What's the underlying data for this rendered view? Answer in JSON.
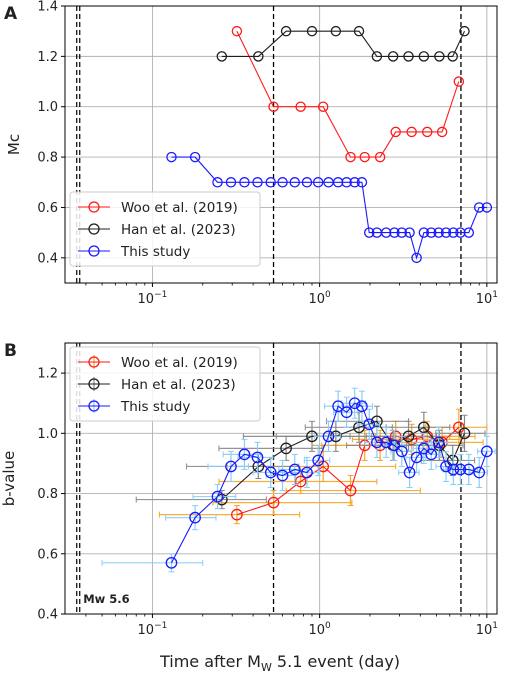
{
  "panels": [
    {
      "letter": "A"
    },
    {
      "letter": "B"
    }
  ],
  "x_ticks": [
    {
      "v": 0.1,
      "base": "10",
      "exp": "−1"
    },
    {
      "v": 1,
      "base": "10",
      "exp": "0"
    },
    {
      "v": 10,
      "base": "10",
      "exp": "1"
    }
  ],
  "x_label": {
    "pre": "Time after M",
    "sub": "W",
    "post": " 5.1 event (day)"
  },
  "colors": {
    "woo": "#ff1a1a",
    "han": "#1f1f1f",
    "this": "#1a1aff",
    "woo_err": "#f5a623",
    "this_err": "#87cefa",
    "grid": "#b0b0b0"
  },
  "chart_data": [
    {
      "type": "line",
      "panel": "A",
      "ylabel": "Mc",
      "xlabel": "",
      "xscale": "log",
      "xlim": [
        0.03,
        11.5
      ],
      "ylim": [
        0.3,
        1.4
      ],
      "y_ticks": [
        "0.4",
        "0.6",
        "0.8",
        "1.0",
        "1.2",
        "1.4"
      ],
      "legend": "lower-left",
      "grid": true,
      "vlines": [
        0.036,
        0.53,
        7.0
      ],
      "series": [
        {
          "name": "Woo et al. (2019)",
          "key": "woo",
          "x": [
            0.32,
            0.53,
            0.77,
            1.05,
            1.53,
            1.86,
            2.3,
            2.85,
            3.55,
            4.4,
            5.4,
            6.8
          ],
          "y": [
            1.3,
            1.0,
            1.0,
            1.0,
            0.8,
            0.8,
            0.8,
            0.9,
            0.9,
            0.9,
            0.9,
            1.1
          ]
        },
        {
          "name": "Han et al. (2023)",
          "key": "han",
          "x": [
            0.26,
            0.43,
            0.63,
            0.9,
            1.25,
            1.72,
            2.2,
            2.75,
            3.4,
            4.2,
            5.2,
            6.25,
            7.35
          ],
          "y": [
            1.2,
            1.2,
            1.3,
            1.3,
            1.3,
            1.3,
            1.2,
            1.2,
            1.2,
            1.2,
            1.2,
            1.2,
            1.3
          ]
        },
        {
          "name": "This study",
          "key": "this",
          "x": [
            0.13,
            0.18,
            0.245,
            0.295,
            0.355,
            0.425,
            0.51,
            0.6,
            0.71,
            0.84,
            0.98,
            1.13,
            1.29,
            1.45,
            1.62,
            1.79,
            1.98,
            2.2,
            2.5,
            2.8,
            3.1,
            3.45,
            3.8,
            4.2,
            4.65,
            5.15,
            5.7,
            6.3,
            6.95,
            7.8,
            9.0,
            10.0
          ],
          "y": [
            0.8,
            0.8,
            0.7,
            0.7,
            0.7,
            0.7,
            0.7,
            0.7,
            0.7,
            0.7,
            0.7,
            0.7,
            0.7,
            0.7,
            0.7,
            0.7,
            0.5,
            0.5,
            0.5,
            0.5,
            0.5,
            0.5,
            0.4,
            0.5,
            0.5,
            0.5,
            0.5,
            0.5,
            0.5,
            0.5,
            0.6,
            0.6
          ]
        }
      ]
    },
    {
      "type": "line",
      "panel": "B",
      "ylabel": "b-value",
      "xlabel": "Time after MW 5.1 event (day)",
      "xscale": "log",
      "xlim": [
        0.03,
        11.5
      ],
      "ylim": [
        0.4,
        1.3
      ],
      "y_ticks": [
        "0.4",
        "0.6",
        "0.8",
        "1.0",
        "1.2"
      ],
      "legend": "top-left",
      "grid": true,
      "vlines": [
        0.036,
        0.53,
        7.0
      ],
      "annotation": "Mw 5.6",
      "series": [
        {
          "name": "Woo et al. (2019)",
          "key": "woo",
          "x": [
            0.32,
            0.53,
            0.77,
            1.05,
            1.53,
            1.86,
            2.3,
            2.85,
            3.55,
            4.4,
            5.4,
            6.8
          ],
          "y": [
            0.73,
            0.77,
            0.84,
            0.89,
            0.81,
            0.96,
            0.96,
            0.99,
            0.98,
            0.99,
            0.97,
            1.02
          ],
          "xerr_lo": [
            0.21,
            0.3,
            0.52,
            0.77,
            0.9,
            0.96,
            1.27,
            1.65,
            1.98,
            2.25,
            2.7,
            2.5
          ],
          "xerr_hi": [
            0.44,
            1.03,
            1.43,
            1.8,
            2.47,
            3.24,
            2.7,
            3.15,
            3.45,
            4.1,
            4.1,
            3.2
          ],
          "yerr": [
            0.03,
            0.04,
            0.04,
            0.05,
            0.05,
            0.05,
            0.05,
            0.05,
            0.05,
            0.05,
            0.05,
            0.06
          ]
        },
        {
          "name": "Han et al. (2023)",
          "key": "han",
          "x": [
            0.26,
            0.43,
            0.63,
            0.9,
            1.25,
            1.72,
            2.2,
            2.75,
            3.4,
            4.2,
            5.2,
            6.25,
            7.35
          ],
          "y": [
            0.78,
            0.89,
            0.95,
            0.99,
            0.99,
            1.02,
            1.04,
            0.96,
            0.99,
            1.02,
            0.96,
            0.91,
            1.0
          ],
          "xerr_lo": [
            0.18,
            0.27,
            0.38,
            0.55,
            0.7,
            0.9,
            1.1,
            1.3,
            1.5,
            1.7,
            1.9,
            2.2,
            2.4
          ],
          "xerr_hi": [
            0.22,
            0.32,
            0.42,
            0.62,
            0.8,
            1.0,
            1.2,
            1.4,
            1.6,
            1.8,
            2.0,
            2.2,
            2.4
          ],
          "yerr": [
            0.03,
            0.04,
            0.04,
            0.05,
            0.05,
            0.05,
            0.05,
            0.05,
            0.05,
            0.05,
            0.05,
            0.05,
            0.06
          ]
        },
        {
          "name": "This study",
          "key": "this",
          "x": [
            0.13,
            0.18,
            0.245,
            0.295,
            0.355,
            0.425,
            0.51,
            0.6,
            0.71,
            0.84,
            0.98,
            1.13,
            1.29,
            1.45,
            1.62,
            1.79,
            1.98,
            2.2,
            2.5,
            2.8,
            3.1,
            3.45,
            3.8,
            4.2,
            4.65,
            5.15,
            5.7,
            6.3,
            6.95,
            7.8,
            9.0,
            10.0
          ],
          "y": [
            0.57,
            0.72,
            0.79,
            0.89,
            0.93,
            0.92,
            0.87,
            0.86,
            0.88,
            0.87,
            0.91,
            0.99,
            1.09,
            1.07,
            1.1,
            1.09,
            1.03,
            0.97,
            0.97,
            0.96,
            0.94,
            0.87,
            0.92,
            0.95,
            0.93,
            0.97,
            0.89,
            0.88,
            0.88,
            0.88,
            0.87,
            0.94
          ],
          "xerr_lo": [
            0.08,
            0.06,
            0.07,
            0.08,
            0.09,
            0.1,
            0.11,
            0.12,
            0.14,
            0.16,
            0.17,
            0.2,
            0.22,
            0.24,
            0.26,
            0.28,
            0.3,
            0.33,
            0.36,
            0.4,
            0.43,
            0.48,
            0.52,
            0.57,
            0.62,
            0.68,
            0.74,
            0.8,
            0.9,
            1.0,
            1.1,
            1.2
          ],
          "xerr_hi": [
            0.07,
            0.06,
            0.07,
            0.08,
            0.09,
            0.1,
            0.11,
            0.12,
            0.14,
            0.16,
            0.17,
            0.2,
            0.22,
            0.24,
            0.26,
            0.28,
            0.3,
            0.33,
            0.36,
            0.4,
            0.43,
            0.48,
            0.52,
            0.57,
            0.62,
            0.68,
            0.74,
            0.8,
            0.9,
            1.0,
            1.1,
            1.2
          ],
          "yerr": [
            0.03,
            0.04,
            0.04,
            0.05,
            0.05,
            0.05,
            0.05,
            0.05,
            0.05,
            0.05,
            0.05,
            0.05,
            0.05,
            0.05,
            0.05,
            0.05,
            0.05,
            0.05,
            0.05,
            0.05,
            0.05,
            0.05,
            0.05,
            0.05,
            0.05,
            0.05,
            0.05,
            0.05,
            0.05,
            0.05,
            0.05,
            0.05
          ]
        }
      ]
    }
  ]
}
